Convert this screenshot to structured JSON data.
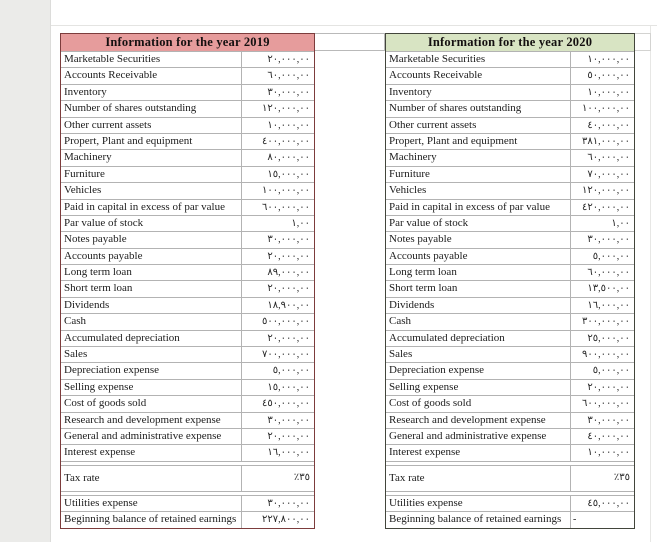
{
  "colors": {
    "header_2019_bg": "#e69c9c",
    "header_2020_bg": "#d8e4c3",
    "table_2019_border": "#7c3c3c",
    "table_2020_border": "#42453b",
    "gridline": "#b3b3b3",
    "side_strip": "#ebebe9"
  },
  "tables": [
    {
      "title": "Information for the year 2019",
      "header_bg": "#e69c9c",
      "border_color": "#7c3c3c",
      "rows": [
        {
          "label": "Marketable Securities",
          "value": "٢٠,٠٠٠,٠٠"
        },
        {
          "label": "Accounts Receivable",
          "value": "٦٠,٠٠٠,٠٠"
        },
        {
          "label": "Inventory",
          "value": "٣٠,٠٠٠,٠٠"
        },
        {
          "label": "Number of shares outstanding",
          "value": "١٢٠,٠٠٠,٠٠"
        },
        {
          "label": "Other current assets",
          "value": "١٠,٠٠٠,٠٠"
        },
        {
          "label": "Propert, Plant and equipment",
          "value": "٤٠٠,٠٠٠,٠٠"
        },
        {
          "label": "Machinery",
          "value": "٨٠,٠٠٠,٠٠"
        },
        {
          "label": "Furniture",
          "value": "١٥,٠٠٠,٠٠"
        },
        {
          "label": "Vehicles",
          "value": "١٠٠,٠٠٠,٠٠"
        },
        {
          "label": "Paid in capital in excess of par value",
          "value": "٦٠٠,٠٠٠,٠٠"
        },
        {
          "label": "Par value of stock",
          "value": "١,٠٠"
        },
        {
          "label": "Notes payable",
          "value": "٣٠,٠٠٠,٠٠"
        },
        {
          "label": "Accounts payable",
          "value": "٢٠,٠٠٠,٠٠"
        },
        {
          "label": "Long term loan",
          "value": "٨٩,٠٠٠,٠٠"
        },
        {
          "label": "Short term loan",
          "value": "٢٠,٠٠٠,٠٠"
        },
        {
          "label": "Dividends",
          "value": "١٨,٩٠٠,٠٠"
        },
        {
          "label": "Cash",
          "value": "٥٠٠,٠٠٠,٠٠"
        },
        {
          "label": "Accumulated depreciation",
          "value": "٢٠,٠٠٠,٠٠"
        },
        {
          "label": "Sales",
          "value": "٧٠٠,٠٠٠,٠٠"
        },
        {
          "label": "Depreciation expense",
          "value": "٥,٠٠٠,٠٠"
        },
        {
          "label": "Selling expense",
          "value": "١٥,٠٠٠,٠٠"
        },
        {
          "label": "Cost of goods sold",
          "value": "٤٥٠,٠٠٠,٠٠"
        },
        {
          "label": "Research and development expense",
          "value": "٣٠,٠٠٠,٠٠"
        },
        {
          "label": "General and administrative expense",
          "value": "٢٠,٠٠٠,٠٠"
        },
        {
          "label": "Interest expense",
          "value": "١٦,٠٠٠,٠٠"
        },
        {
          "label": "Tax rate",
          "value": "٪٣٥",
          "tall": true,
          "gap_before": true
        },
        {
          "label": "Utilities expense",
          "value": "٣٠,٠٠٠,٠٠",
          "gap_before": true
        },
        {
          "label": "Beginning balance of retained earnings",
          "value": "٢٢٧,٨٠٠,٠٠"
        }
      ]
    },
    {
      "title": "Information for the year 2020",
      "header_bg": "#d8e4c3",
      "border_color": "#42453b",
      "rows": [
        {
          "label": "Marketable Securities",
          "value": "١٠,٠٠٠,٠٠"
        },
        {
          "label": "Accounts Receivable",
          "value": "٥٠,٠٠٠,٠٠"
        },
        {
          "label": "Inventory",
          "value": "١٠,٠٠٠,٠٠"
        },
        {
          "label": "Number of shares outstanding",
          "value": "١٠٠,٠٠٠,٠٠"
        },
        {
          "label": "Other current assets",
          "value": "٤٠,٠٠٠,٠٠"
        },
        {
          "label": "Propert, Plant and equipment",
          "value": "٣٨١,٠٠٠,٠٠"
        },
        {
          "label": "Machinery",
          "value": "٦٠,٠٠٠,٠٠"
        },
        {
          "label": "Furniture",
          "value": "٧٠,٠٠٠,٠٠"
        },
        {
          "label": "Vehicles",
          "value": "١٢٠,٠٠٠,٠٠"
        },
        {
          "label": "Paid in capital in excess of par value",
          "value": "٤٢٠,٠٠٠,٠٠"
        },
        {
          "label": "Par value of stock",
          "value": "١,٠٠"
        },
        {
          "label": "Notes payable",
          "value": "٣٠,٠٠٠,٠٠"
        },
        {
          "label": "Accounts payable",
          "value": "٥,٠٠٠,٠٠"
        },
        {
          "label": "Long term loan",
          "value": "٦٠,٠٠٠,٠٠"
        },
        {
          "label": "Short term loan",
          "value": "١٣,٥٠٠,٠٠"
        },
        {
          "label": "Dividends",
          "value": "١٦,٠٠٠,٠٠"
        },
        {
          "label": "Cash",
          "value": "٣٠٠,٠٠٠,٠٠"
        },
        {
          "label": "Accumulated depreciation",
          "value": "٢٥,٠٠٠,٠٠"
        },
        {
          "label": "Sales",
          "value": "٩٠٠,٠٠٠,٠٠"
        },
        {
          "label": "Depreciation expense",
          "value": "٥,٠٠٠,٠٠"
        },
        {
          "label": "Selling expense",
          "value": "٢٠,٠٠٠,٠٠"
        },
        {
          "label": "Cost of goods sold",
          "value": "٦٠٠,٠٠٠,٠٠"
        },
        {
          "label": "Research and development expense",
          "value": "٣٠,٠٠٠,٠٠"
        },
        {
          "label": "General and administrative expense",
          "value": "٤٠,٠٠٠,٠٠"
        },
        {
          "label": "Interest expense",
          "value": "١٠,٠٠٠,٠٠"
        },
        {
          "label": "Tax rate",
          "value": "٪٣٥",
          "tall": true,
          "gap_before": true
        },
        {
          "label": "Utilities expense",
          "value": "٤٥,٠٠٠,٠٠",
          "gap_before": true
        },
        {
          "label": "Beginning balance of retained earnings",
          "value": "-",
          "align": "left"
        }
      ]
    }
  ]
}
